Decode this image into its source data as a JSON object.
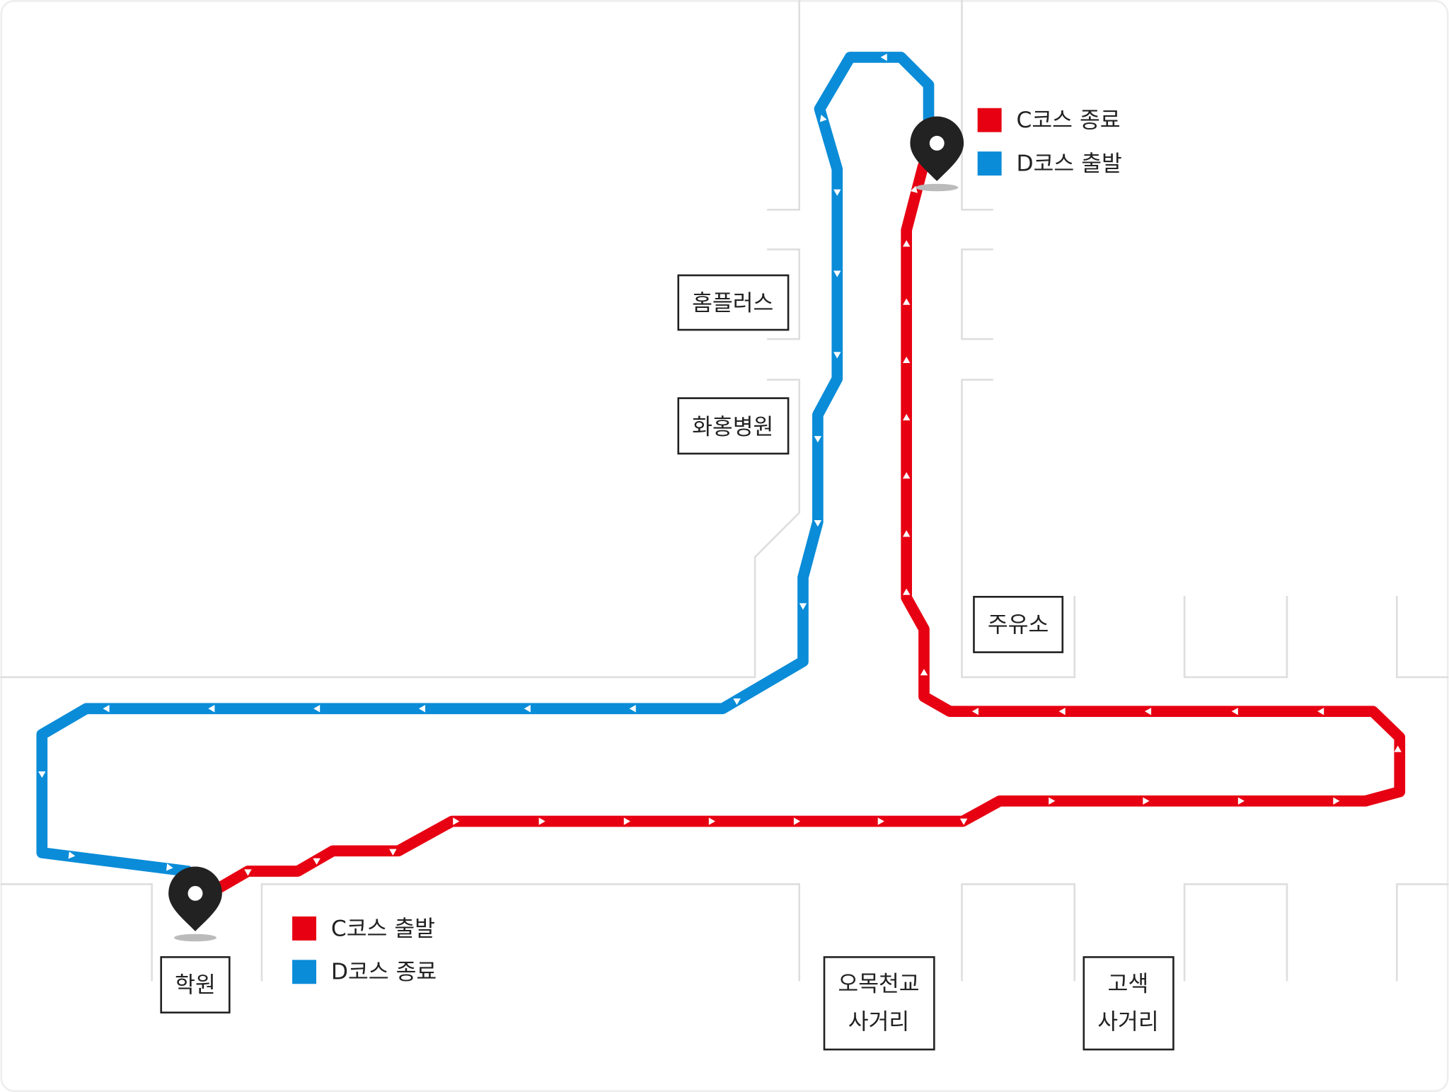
{
  "colors": {
    "course_c": "#e60012",
    "course_d": "#0a8cd8",
    "road": "#dedede",
    "pin": "#222222"
  },
  "legend_top": [
    {
      "label": "C코스 종료",
      "color": "#e60012"
    },
    {
      "label": "D코스 출발",
      "color": "#0a8cd8"
    }
  ],
  "legend_bottom": [
    {
      "label": "C코스 출발",
      "color": "#e60012"
    },
    {
      "label": "D코스 종료",
      "color": "#0a8cd8"
    }
  ],
  "places": {
    "homeplus": "홈플러스",
    "hospital": "화홍병원",
    "gas_station": "주유소",
    "academy": "학원",
    "omok_line1": "오목천교",
    "omok_line2": "사거리",
    "gosaek_line1": "고색",
    "gosaek_line2": "사거리"
  },
  "icons": {
    "start_end_marker": "map-pin-icon",
    "direction": "arrow-triangle-icon"
  }
}
